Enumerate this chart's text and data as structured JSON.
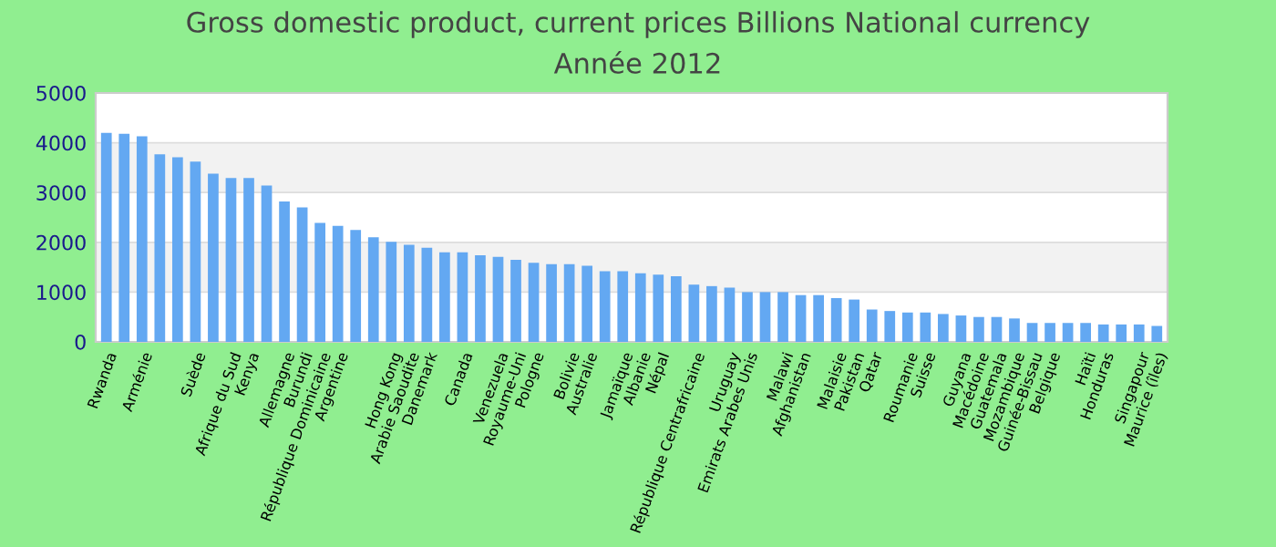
{
  "chart_data": {
    "type": "bar",
    "title": "Gross domestic product, current prices Billions National currency",
    "subtitle": "Année 2012",
    "categories": [
      "Rwanda",
      null,
      "Arménie",
      null,
      null,
      "Suède",
      null,
      "Afrique du Sud",
      "Kenya",
      null,
      "Allemagne",
      "Burundi",
      "République Dominicaine",
      "Argentine",
      null,
      null,
      "Hong Kong",
      "Arabie Saoudite",
      "Danemark",
      null,
      "Canada",
      null,
      "Venezuela",
      "Royaume-Uni",
      "Pologne",
      null,
      "Bolivie",
      "Australie",
      null,
      "Jamaïque",
      "Albanie",
      "Népal",
      null,
      "République Centrafricaine",
      null,
      "Uruguay",
      "Emirats Arabes Unis",
      null,
      "Malawi",
      "Afghanistan",
      null,
      "Malaisie",
      "Pakistan",
      "Qatar",
      null,
      "Roumanie",
      "Suisse",
      null,
      "Guyana",
      "Macédoine",
      "Guatemala",
      "Mozambique",
      "Guinée-Bissau",
      "Belgique",
      null,
      "Haïti",
      "Honduras",
      null,
      "Singapour",
      "Maurice (îles)"
    ],
    "values": [
      4200,
      4180,
      4130,
      3770,
      3710,
      3620,
      3380,
      3290,
      3290,
      3140,
      2820,
      2700,
      2390,
      2330,
      2250,
      2100,
      2010,
      1950,
      1890,
      1800,
      1800,
      1740,
      1710,
      1650,
      1590,
      1560,
      1560,
      1530,
      1420,
      1420,
      1380,
      1350,
      1320,
      1150,
      1120,
      1090,
      1000,
      1000,
      1000,
      940,
      940,
      880,
      850,
      650,
      620,
      590,
      590,
      560,
      530,
      500,
      500,
      470,
      380,
      380,
      380,
      380,
      350,
      350,
      350,
      320
    ],
    "color": "#63a8f2",
    "ylim": [
      0,
      5000
    ],
    "yticks": [
      0,
      1000,
      2000,
      3000,
      4000,
      5000
    ],
    "grid": "y"
  }
}
